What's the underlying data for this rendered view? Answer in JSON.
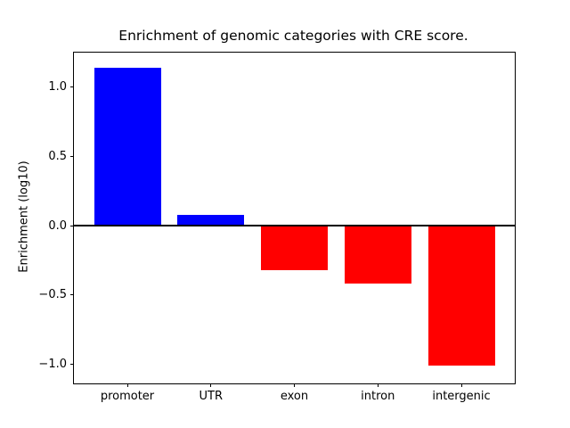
{
  "figure": {
    "background": "#ffffff"
  },
  "chart_data": {
    "type": "bar",
    "title": "Enrichment of genomic categories with CRE score.",
    "xlabel": "",
    "ylabel": "Enrichment (log10)",
    "categories": [
      "promoter",
      "UTR",
      "exon",
      "intron",
      "intergenic"
    ],
    "values": [
      1.14,
      0.08,
      -0.32,
      -0.42,
      -1.01
    ],
    "bar_colors": [
      "#0000ff",
      "#0000ff",
      "#ff0000",
      "#ff0000",
      "#ff0000"
    ],
    "positive_color": "#0000ff",
    "negative_color": "#ff0000",
    "yticks": [
      -1.0,
      -0.5,
      0.0,
      0.5,
      1.0
    ],
    "ytick_labels": [
      "−1.0",
      "−0.5",
      "0.0",
      "0.5",
      "1.0"
    ],
    "ylim": [
      -1.14,
      1.25
    ],
    "xlim": [
      -0.64,
      4.64
    ],
    "bar_width": 0.8,
    "zero_line": true,
    "zero_line_color": "#000000",
    "grid": false,
    "legend": null,
    "axes_edge_color": "#000000"
  }
}
